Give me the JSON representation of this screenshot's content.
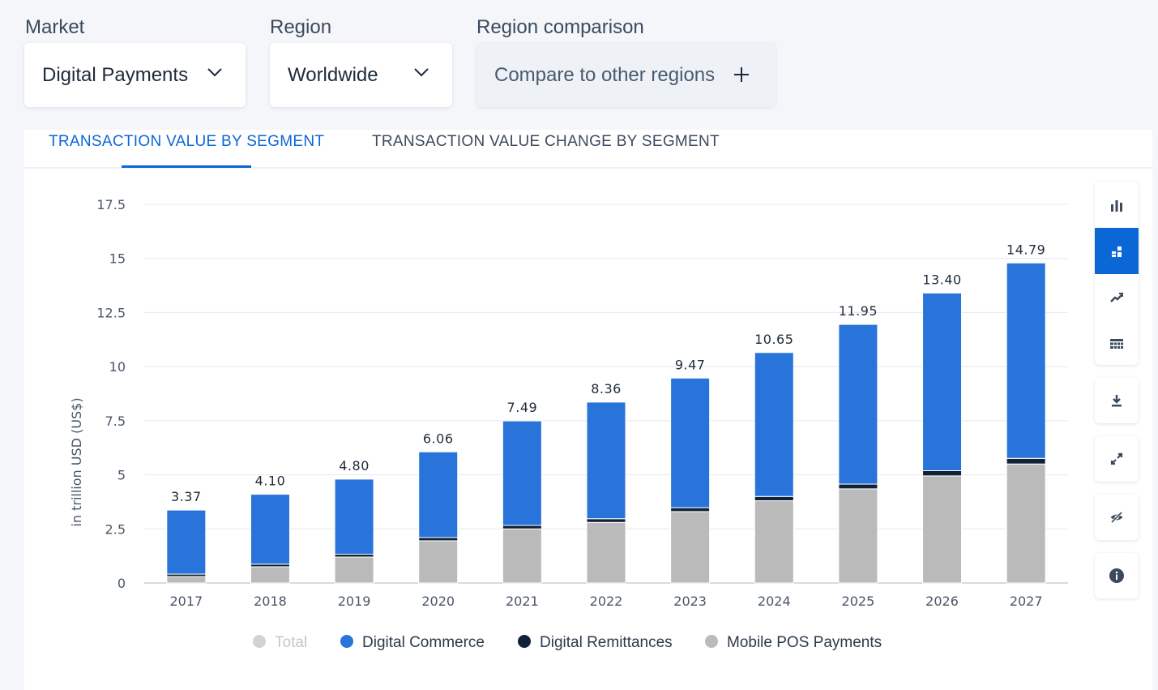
{
  "filters": {
    "market": {
      "label": "Market",
      "value": "Digital Payments"
    },
    "region": {
      "label": "Region",
      "value": "Worldwide"
    },
    "comparison": {
      "label": "Region comparison",
      "placeholder": "Compare to other regions"
    }
  },
  "tabs": [
    {
      "label": "TRANSACTION VALUE BY SEGMENT",
      "active": true
    },
    {
      "label": "TRANSACTION VALUE CHANGE BY SEGMENT",
      "active": false
    }
  ],
  "toolbar": {
    "view_buttons": [
      {
        "icon": "bar-chart-icon",
        "active": false
      },
      {
        "icon": "stacked-bar-chart-icon",
        "active": true
      },
      {
        "icon": "line-chart-icon",
        "active": false
      },
      {
        "icon": "table-icon",
        "active": false
      }
    ],
    "action_buttons": [
      {
        "icon": "download-icon"
      },
      {
        "icon": "fullscreen-icon"
      },
      {
        "icon": "hide-icon"
      },
      {
        "icon": "info-icon"
      }
    ]
  },
  "colors": {
    "digital_commerce": "#2874db",
    "digital_remittances": "#0f2238",
    "mobile_pos": "#bababa",
    "total": "#d2d2d2",
    "accent": "#0b66d6"
  },
  "chart_data": {
    "type": "bar",
    "stacked": true,
    "ylabel": "in trillion USD (US$)",
    "ylim": [
      0,
      17.5
    ],
    "yticks": [
      "0",
      "2.5",
      "5",
      "7.5",
      "10",
      "12.5",
      "15",
      "17.5"
    ],
    "categories": [
      "2017",
      "2018",
      "2019",
      "2020",
      "2021",
      "2022",
      "2023",
      "2024",
      "2025",
      "2026",
      "2027"
    ],
    "totals": [
      "3.37",
      "4.10",
      "4.80",
      "6.06",
      "7.49",
      "8.36",
      "9.47",
      "10.65",
      "11.95",
      "13.40",
      "14.79"
    ],
    "series": [
      {
        "name": "Mobile POS Payments",
        "values": [
          0.3,
          0.75,
          1.2,
          1.95,
          2.5,
          2.8,
          3.3,
          3.8,
          4.35,
          4.95,
          5.5
        ]
      },
      {
        "name": "Digital Remittances",
        "values": [
          0.11,
          0.12,
          0.13,
          0.15,
          0.16,
          0.17,
          0.18,
          0.2,
          0.22,
          0.24,
          0.26
        ]
      },
      {
        "name": "Digital Commerce",
        "values": [
          2.96,
          3.23,
          3.47,
          3.96,
          4.83,
          5.39,
          5.99,
          6.65,
          7.38,
          8.21,
          9.03
        ]
      }
    ],
    "legend": [
      {
        "name": "Total",
        "color": "#d2d2d2",
        "muted": true
      },
      {
        "name": "Digital Commerce",
        "color": "#2874db",
        "muted": false
      },
      {
        "name": "Digital Remittances",
        "color": "#0f2238",
        "muted": false
      },
      {
        "name": "Mobile POS Payments",
        "color": "#bababa",
        "muted": false
      }
    ],
    "legend_position": "bottom",
    "grid": true
  }
}
